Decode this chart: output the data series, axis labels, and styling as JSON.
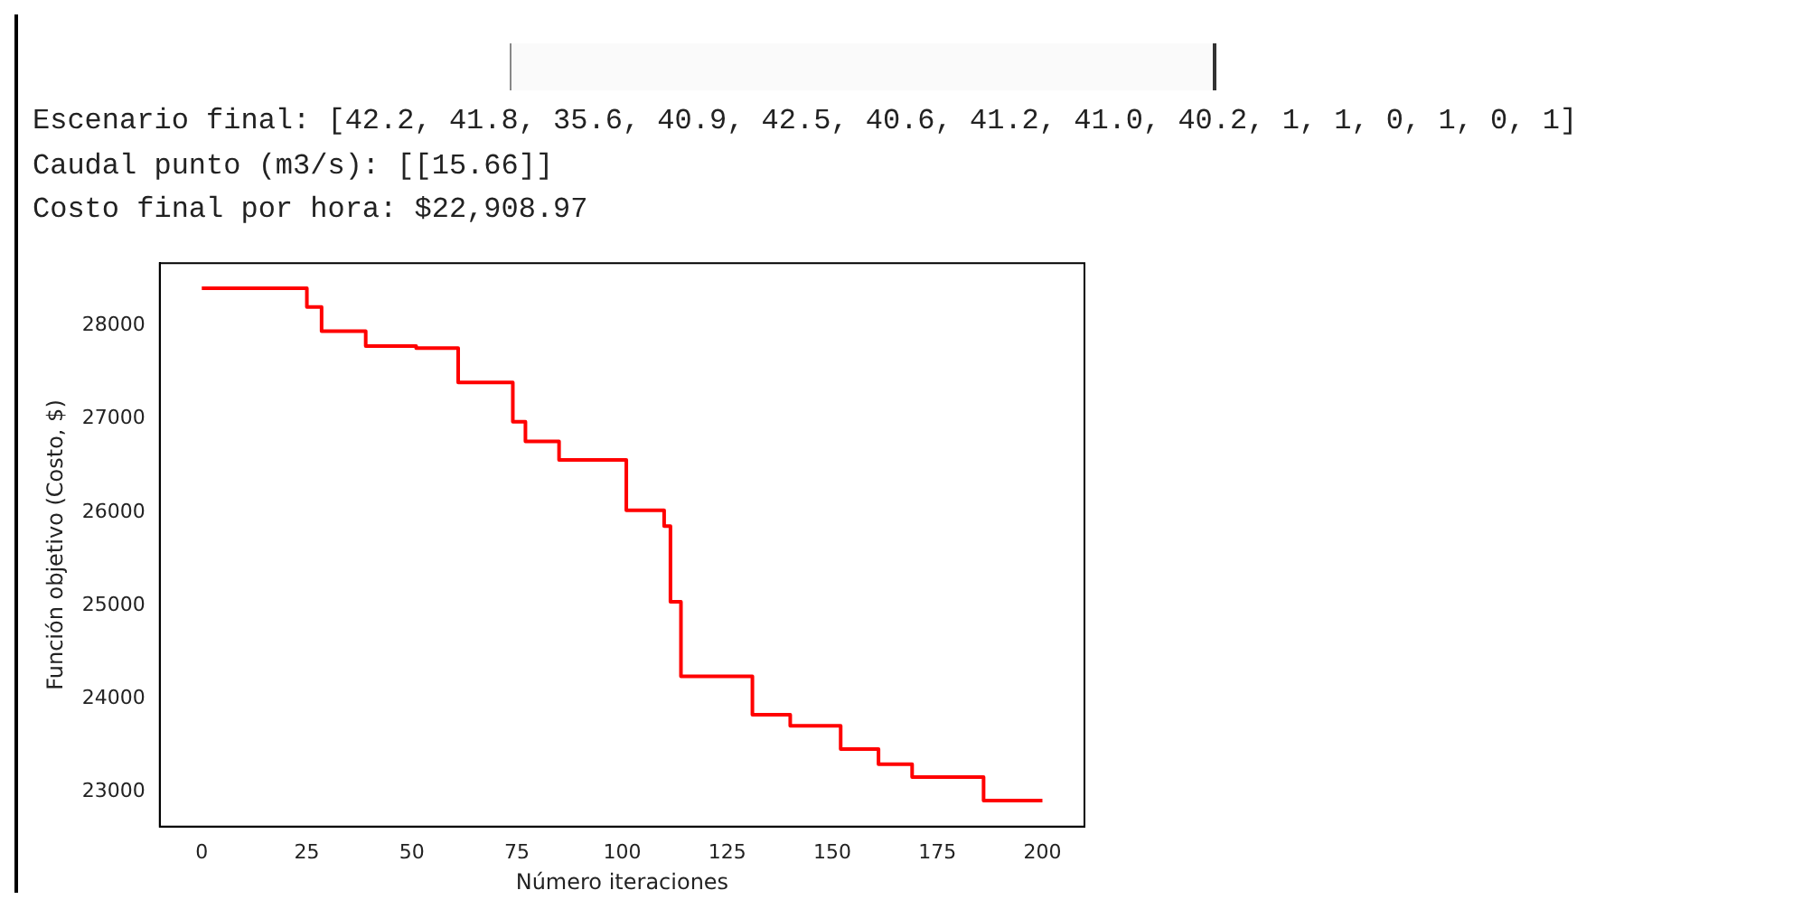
{
  "chart_data": {
    "type": "step",
    "annotations": [
      "Escenario final: [42.2, 41.8, 35.6, 40.9, 42.5, 40.6, 41.2, 41.0, 40.2, 1, 1, 0, 1, 0, 1]",
      "Caudal punto (m3/s): [[15.66]]",
      "Costo final por hora: $22,908.97"
    ],
    "xlabel": "Número iteraciones",
    "ylabel": "Función objetivo (Costo, $)",
    "x": [
      0,
      25,
      28.5,
      39,
      51,
      61,
      74,
      77,
      85,
      101,
      110,
      111.5,
      114,
      131,
      140,
      152,
      161,
      169,
      186,
      200
    ],
    "series": [
      {
        "color": "#ff0000",
        "values": [
          28400,
          28200,
          27940,
          27780,
          27760,
          27390,
          26970,
          26760,
          26560,
          26020,
          25850,
          25040,
          24240,
          23830,
          23710,
          23460,
          23300,
          23160,
          22910,
          22910
        ]
      }
    ],
    "xlim": [
      -10,
      210
    ],
    "xticks": [
      0,
      25,
      50,
      75,
      100,
      125,
      150,
      175,
      200
    ],
    "ylim": [
      22630,
      28670
    ],
    "yticks": [
      23000,
      24000,
      25000,
      26000,
      27000,
      28000
    ],
    "grid": false,
    "legend": false
  }
}
